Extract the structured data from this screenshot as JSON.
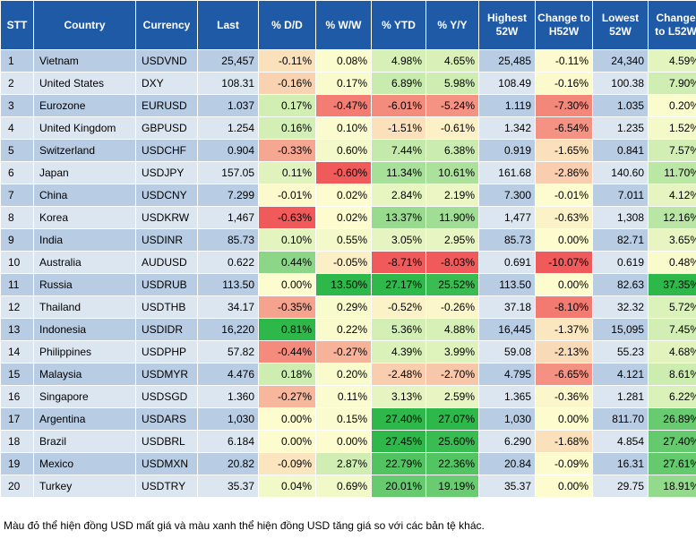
{
  "chart_data": {
    "type": "table",
    "note": "Màu đỏ thể hiện đồng USD mất giá và màu xanh thể hiện đồng USD tăng giá so với các bản tệ khác.",
    "columns": [
      {
        "key": "stt",
        "label": "STT"
      },
      {
        "key": "country",
        "label": "Country"
      },
      {
        "key": "currency",
        "label": "Currency"
      },
      {
        "key": "last",
        "label": "Last"
      },
      {
        "key": "dd",
        "label": "% D/D"
      },
      {
        "key": "ww",
        "label": "% W/W"
      },
      {
        "key": "ytd",
        "label": "% YTD"
      },
      {
        "key": "yy",
        "label": "% Y/Y"
      },
      {
        "key": "high",
        "label": "Highest 52W"
      },
      {
        "key": "chh",
        "label": "Change to H52W"
      },
      {
        "key": "low",
        "label": "Lowest 52W"
      },
      {
        "key": "chl",
        "label": "Change to L52W"
      }
    ],
    "rows": [
      {
        "stt": "1",
        "country": "Vietnam",
        "currency": "USDVND",
        "last": "25,457",
        "dd": "-0.11%",
        "ww": "0.08%",
        "ytd": "4.98%",
        "yy": "4.65%",
        "high": "25,485",
        "chh": "-0.11%",
        "low": "24,340",
        "chl": "4.59%"
      },
      {
        "stt": "2",
        "country": "United States",
        "currency": "DXY",
        "last": "108.31",
        "dd": "-0.16%",
        "ww": "0.17%",
        "ytd": "6.89%",
        "yy": "5.98%",
        "high": "108.49",
        "chh": "-0.16%",
        "low": "100.38",
        "chl": "7.90%"
      },
      {
        "stt": "3",
        "country": "Eurozone",
        "currency": "EURUSD",
        "last": "1.037",
        "dd": "0.17%",
        "ww": "-0.47%",
        "ytd": "-6.01%",
        "yy": "-5.24%",
        "high": "1.119",
        "chh": "-7.30%",
        "low": "1.035",
        "chl": "0.20%"
      },
      {
        "stt": "4",
        "country": "United Kingdom",
        "currency": "GBPUSD",
        "last": "1.254",
        "dd": "0.16%",
        "ww": "0.10%",
        "ytd": "-1.51%",
        "yy": "-0.61%",
        "high": "1.342",
        "chh": "-6.54%",
        "low": "1.235",
        "chl": "1.52%"
      },
      {
        "stt": "5",
        "country": "Switzerland",
        "currency": "USDCHF",
        "last": "0.904",
        "dd": "-0.33%",
        "ww": "0.60%",
        "ytd": "7.44%",
        "yy": "6.38%",
        "high": "0.919",
        "chh": "-1.65%",
        "low": "0.841",
        "chl": "7.57%"
      },
      {
        "stt": "6",
        "country": "Japan",
        "currency": "USDJPY",
        "last": "157.05",
        "dd": "0.11%",
        "ww": "-0.60%",
        "ytd": "11.34%",
        "yy": "10.61%",
        "high": "161.68",
        "chh": "-2.86%",
        "low": "140.60",
        "chl": "11.70%"
      },
      {
        "stt": "7",
        "country": "China",
        "currency": "USDCNY",
        "last": "7.299",
        "dd": "-0.01%",
        "ww": "0.02%",
        "ytd": "2.84%",
        "yy": "2.19%",
        "high": "7.300",
        "chh": "-0.01%",
        "low": "7.011",
        "chl": "4.12%"
      },
      {
        "stt": "8",
        "country": "Korea",
        "currency": "USDKRW",
        "last": "1,467",
        "dd": "-0.63%",
        "ww": "0.02%",
        "ytd": "13.37%",
        "yy": "11.90%",
        "high": "1,477",
        "chh": "-0.63%",
        "low": "1,308",
        "chl": "12.16%"
      },
      {
        "stt": "9",
        "country": "India",
        "currency": "USDINR",
        "last": "85.73",
        "dd": "0.10%",
        "ww": "0.55%",
        "ytd": "3.05%",
        "yy": "2.95%",
        "high": "85.73",
        "chh": "0.00%",
        "low": "82.71",
        "chl": "3.65%"
      },
      {
        "stt": "10",
        "country": "Australia",
        "currency": "AUDUSD",
        "last": "0.622",
        "dd": "0.44%",
        "ww": "-0.05%",
        "ytd": "-8.71%",
        "yy": "-8.03%",
        "high": "0.691",
        "chh": "-10.07%",
        "low": "0.619",
        "chl": "0.48%"
      },
      {
        "stt": "11",
        "country": "Russia",
        "currency": "USDRUB",
        "last": "113.50",
        "dd": "0.00%",
        "ww": "13.50%",
        "ytd": "27.17%",
        "yy": "25.52%",
        "high": "113.50",
        "chh": "0.00%",
        "low": "82.63",
        "chl": "37.35%"
      },
      {
        "stt": "12",
        "country": "Thailand",
        "currency": "USDTHB",
        "last": "34.17",
        "dd": "-0.35%",
        "ww": "0.29%",
        "ytd": "-0.52%",
        "yy": "-0.26%",
        "high": "37.18",
        "chh": "-8.10%",
        "low": "32.32",
        "chl": "5.72%"
      },
      {
        "stt": "13",
        "country": "Indonesia",
        "currency": "USDIDR",
        "last": "16,220",
        "dd": "0.81%",
        "ww": "0.22%",
        "ytd": "5.36%",
        "yy": "4.88%",
        "high": "16,445",
        "chh": "-1.37%",
        "low": "15,095",
        "chl": "7.45%"
      },
      {
        "stt": "14",
        "country": "Philippines",
        "currency": "USDPHP",
        "last": "57.82",
        "dd": "-0.44%",
        "ww": "-0.27%",
        "ytd": "4.39%",
        "yy": "3.99%",
        "high": "59.08",
        "chh": "-2.13%",
        "low": "55.23",
        "chl": "4.68%"
      },
      {
        "stt": "15",
        "country": "Malaysia",
        "currency": "USDMYR",
        "last": "4.476",
        "dd": "0.18%",
        "ww": "0.20%",
        "ytd": "-2.48%",
        "yy": "-2.70%",
        "high": "4.795",
        "chh": "-6.65%",
        "low": "4.121",
        "chl": "8.61%"
      },
      {
        "stt": "16",
        "country": "Singapore",
        "currency": "USDSGD",
        "last": "1.360",
        "dd": "-0.27%",
        "ww": "0.11%",
        "ytd": "3.13%",
        "yy": "2.59%",
        "high": "1.365",
        "chh": "-0.36%",
        "low": "1.281",
        "chl": "6.22%"
      },
      {
        "stt": "17",
        "country": "Argentina",
        "currency": "USDARS",
        "last": "1,030",
        "dd": "0.00%",
        "ww": "0.15%",
        "ytd": "27.40%",
        "yy": "27.07%",
        "high": "1,030",
        "chh": "0.00%",
        "low": "811.70",
        "chl": "26.89%"
      },
      {
        "stt": "18",
        "country": "Brazil",
        "currency": "USDBRL",
        "last": "6.184",
        "dd": "0.00%",
        "ww": "0.00%",
        "ytd": "27.45%",
        "yy": "25.60%",
        "high": "6.290",
        "chh": "-1.68%",
        "low": "4.854",
        "chl": "27.40%"
      },
      {
        "stt": "19",
        "country": "Mexico",
        "currency": "USDMXN",
        "last": "20.82",
        "dd": "-0.09%",
        "ww": "2.87%",
        "ytd": "22.79%",
        "yy": "22.36%",
        "high": "20.84",
        "chh": "-0.09%",
        "low": "16.31",
        "chl": "27.61%"
      },
      {
        "stt": "20",
        "country": "Turkey",
        "currency": "USDTRY",
        "last": "35.37",
        "dd": "0.04%",
        "ww": "0.69%",
        "ytd": "20.01%",
        "yy": "19.19%",
        "high": "35.37",
        "chh": "0.00%",
        "low": "29.75",
        "chl": "18.91%"
      }
    ]
  }
}
